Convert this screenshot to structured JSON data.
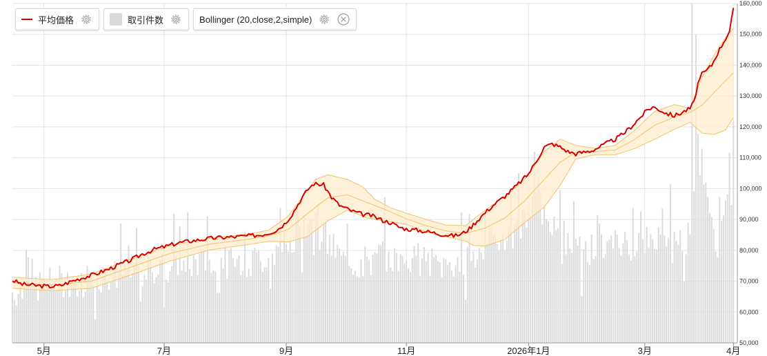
{
  "legend": {
    "price_label": "平均価格",
    "volume_label": "取引件数",
    "bollinger_label": "Bollinger (20,close,2,simple)"
  },
  "colors": {
    "price_line": "#d40000",
    "volume_bar": "#dcdcdc",
    "band_fill": "#fdeccc",
    "band_edge": "#f2c36b",
    "grid": "#e4e4e4"
  },
  "icons": [
    "gear-icon",
    "gear-icon",
    "gear-icon",
    "close-icon"
  ],
  "chart_data": {
    "type": "line",
    "title": "",
    "xlabel": "",
    "ylabel": "",
    "x_tick_labels": [
      "5月",
      "7月",
      "9月",
      "11月",
      "2026年1月",
      "3月",
      "4月"
    ],
    "x_tick_days": [
      16,
      77,
      139,
      200,
      262,
      321,
      366
    ],
    "y_tick_labels": [
      "50,000",
      "60,000",
      "70,000",
      "80,000",
      "90,000",
      "100,000",
      "110,000",
      "120,000",
      "130,000",
      "140,000",
      "150,000",
      "160,000"
    ],
    "ylim": [
      50000,
      160000
    ],
    "x_range_days": [
      0,
      368
    ],
    "grid": true,
    "legend_position": "top-left",
    "series": [
      {
        "name": "平均価格",
        "kind": "line",
        "points": [
          [
            0,
            70300
          ],
          [
            5,
            69000
          ],
          [
            12,
            68600
          ],
          [
            18,
            68300
          ],
          [
            24,
            68500
          ],
          [
            30,
            70000
          ],
          [
            36,
            71200
          ],
          [
            42,
            72300
          ],
          [
            48,
            73700
          ],
          [
            54,
            75300
          ],
          [
            60,
            76800
          ],
          [
            66,
            78800
          ],
          [
            72,
            80300
          ],
          [
            78,
            81300
          ],
          [
            84,
            82400
          ],
          [
            90,
            83000
          ],
          [
            96,
            83500
          ],
          [
            102,
            84000
          ],
          [
            108,
            84200
          ],
          [
            114,
            84400
          ],
          [
            120,
            84700
          ],
          [
            126,
            85000
          ],
          [
            130,
            85600
          ],
          [
            134,
            86500
          ],
          [
            138,
            88500
          ],
          [
            142,
            91700
          ],
          [
            146,
            96000
          ],
          [
            150,
            99800
          ],
          [
            153,
            101600
          ],
          [
            158,
            101200
          ],
          [
            162,
            97200
          ],
          [
            166,
            94600
          ],
          [
            172,
            92800
          ],
          [
            178,
            91600
          ],
          [
            182,
            91300
          ],
          [
            188,
            89700
          ],
          [
            192,
            89000
          ],
          [
            196,
            87600
          ],
          [
            200,
            86900
          ],
          [
            206,
            86500
          ],
          [
            212,
            85900
          ],
          [
            218,
            85200
          ],
          [
            224,
            84700
          ],
          [
            228,
            85300
          ],
          [
            232,
            87000
          ],
          [
            236,
            89700
          ],
          [
            240,
            92200
          ],
          [
            244,
            94600
          ],
          [
            250,
            97500
          ],
          [
            256,
            101000
          ],
          [
            262,
            104800
          ],
          [
            266,
            109000
          ],
          [
            270,
            113500
          ],
          [
            274,
            114500
          ],
          [
            278,
            113500
          ],
          [
            282,
            112000
          ],
          [
            286,
            111300
          ],
          [
            290,
            111800
          ],
          [
            294,
            112300
          ],
          [
            298,
            113500
          ],
          [
            302,
            114800
          ],
          [
            306,
            116000
          ],
          [
            310,
            117700
          ],
          [
            314,
            120000
          ],
          [
            318,
            122600
          ],
          [
            322,
            125300
          ],
          [
            325,
            126500
          ],
          [
            328,
            125700
          ],
          [
            332,
            124400
          ],
          [
            336,
            123600
          ],
          [
            340,
            124700
          ],
          [
            344,
            126000
          ],
          [
            346,
            128000
          ],
          [
            348,
            134000
          ],
          [
            350,
            137000
          ],
          [
            352,
            138000
          ],
          [
            355,
            140000
          ],
          [
            358,
            144000
          ],
          [
            361,
            147500
          ],
          [
            364,
            151000
          ],
          [
            366,
            158000
          ]
        ]
      },
      {
        "name": "",
        "kind": "band-mid",
        "points": [
          [
            0,
            69500
          ],
          [
            20,
            68700
          ],
          [
            40,
            70000
          ],
          [
            60,
            74500
          ],
          [
            80,
            79000
          ],
          [
            100,
            82000
          ],
          [
            120,
            83600
          ],
          [
            130,
            84700
          ],
          [
            140,
            86800
          ],
          [
            150,
            92000
          ],
          [
            160,
            97000
          ],
          [
            170,
            98000
          ],
          [
            180,
            95500
          ],
          [
            190,
            93000
          ],
          [
            200,
            90200
          ],
          [
            210,
            88000
          ],
          [
            220,
            86300
          ],
          [
            230,
            85500
          ],
          [
            240,
            87200
          ],
          [
            250,
            90500
          ],
          [
            260,
            96000
          ],
          [
            270,
            103000
          ],
          [
            278,
            108500
          ],
          [
            286,
            111800
          ],
          [
            296,
            112000
          ],
          [
            306,
            112500
          ],
          [
            316,
            116000
          ],
          [
            326,
            120500
          ],
          [
            336,
            123200
          ],
          [
            344,
            124700
          ],
          [
            350,
            127000
          ],
          [
            356,
            131000
          ],
          [
            362,
            135000
          ],
          [
            366,
            137500
          ]
        ]
      },
      {
        "name": "",
        "kind": "band-upper",
        "points": [
          [
            0,
            71300
          ],
          [
            20,
            70500
          ],
          [
            40,
            72300
          ],
          [
            60,
            77000
          ],
          [
            80,
            81500
          ],
          [
            100,
            83900
          ],
          [
            120,
            85300
          ],
          [
            130,
            86500
          ],
          [
            140,
            91000
          ],
          [
            148,
            98000
          ],
          [
            154,
            103000
          ],
          [
            160,
            104500
          ],
          [
            170,
            103000
          ],
          [
            178,
            100500
          ],
          [
            184,
            96500
          ],
          [
            192,
            93800
          ],
          [
            200,
            92000
          ],
          [
            210,
            90000
          ],
          [
            220,
            88200
          ],
          [
            230,
            88000
          ],
          [
            240,
            93000
          ],
          [
            250,
            97500
          ],
          [
            260,
            103000
          ],
          [
            270,
            112000
          ],
          [
            278,
            116000
          ],
          [
            286,
            114000
          ],
          [
            296,
            113000
          ],
          [
            306,
            114000
          ],
          [
            316,
            119000
          ],
          [
            326,
            125000
          ],
          [
            336,
            127200
          ],
          [
            344,
            126000
          ],
          [
            350,
            136000
          ],
          [
            356,
            143000
          ],
          [
            362,
            149000
          ],
          [
            366,
            152000
          ]
        ]
      },
      {
        "name": "",
        "kind": "band-lower",
        "points": [
          [
            0,
            67700
          ],
          [
            20,
            66900
          ],
          [
            40,
            67700
          ],
          [
            60,
            72000
          ],
          [
            80,
            76500
          ],
          [
            100,
            80100
          ],
          [
            120,
            81900
          ],
          [
            130,
            82900
          ],
          [
            140,
            82700
          ],
          [
            150,
            84500
          ],
          [
            160,
            89500
          ],
          [
            170,
            93000
          ],
          [
            180,
            90500
          ],
          [
            190,
            89500
          ],
          [
            200,
            88400
          ],
          [
            210,
            86000
          ],
          [
            220,
            84400
          ],
          [
            230,
            83000
          ],
          [
            234,
            81600
          ],
          [
            240,
            81400
          ],
          [
            250,
            83500
          ],
          [
            260,
            89000
          ],
          [
            270,
            94000
          ],
          [
            278,
            101000
          ],
          [
            286,
            109600
          ],
          [
            296,
            111000
          ],
          [
            306,
            111000
          ],
          [
            316,
            113000
          ],
          [
            326,
            116000
          ],
          [
            336,
            119200
          ],
          [
            344,
            121500
          ],
          [
            350,
            118000
          ],
          [
            356,
            117500
          ],
          [
            362,
            119000
          ],
          [
            366,
            123000
          ]
        ]
      },
      {
        "name": "取引件数",
        "kind": "bars-anchors",
        "points": [
          [
            0,
            67000
          ],
          [
            20,
            70000
          ],
          [
            40,
            72000
          ],
          [
            60,
            73000
          ],
          [
            80,
            75500
          ],
          [
            100,
            77000
          ],
          [
            120,
            76500
          ],
          [
            130,
            78500
          ],
          [
            135,
            82500
          ],
          [
            145,
            85000
          ],
          [
            152,
            95000
          ],
          [
            160,
            83000
          ],
          [
            170,
            76000
          ],
          [
            180,
            77000
          ],
          [
            190,
            78500
          ],
          [
            200,
            77000
          ],
          [
            210,
            77000
          ],
          [
            220,
            75500
          ],
          [
            230,
            78000
          ],
          [
            240,
            82000
          ],
          [
            250,
            86000
          ],
          [
            260,
            90000
          ],
          [
            266,
            96000
          ],
          [
            272,
            93000
          ],
          [
            280,
            84000
          ],
          [
            290,
            80000
          ],
          [
            300,
            82000
          ],
          [
            310,
            83000
          ],
          [
            320,
            82000
          ],
          [
            330,
            86000
          ],
          [
            340,
            82000
          ],
          [
            344,
            90000
          ],
          [
            346,
            98000
          ],
          [
            348,
            105000
          ],
          [
            350,
            110000
          ],
          [
            356,
            90000
          ],
          [
            362,
            95000
          ],
          [
            366,
            100000
          ]
        ]
      }
    ]
  }
}
